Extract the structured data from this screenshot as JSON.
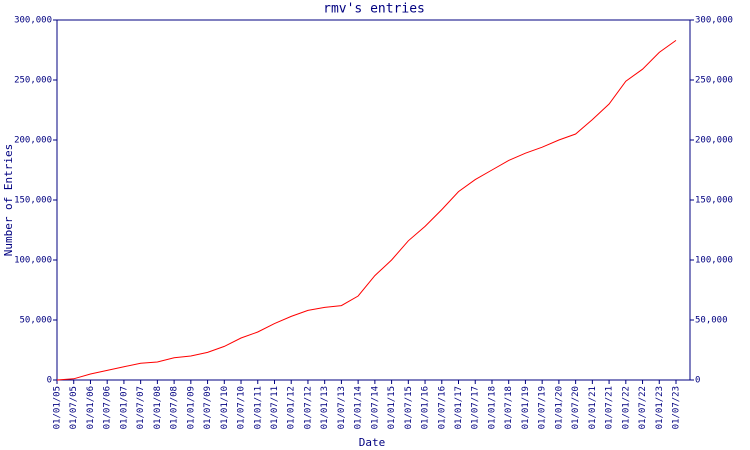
{
  "chart_data": {
    "type": "line",
    "title": "rmv's entries",
    "x_label": "Date",
    "y_label": "Number of Entries",
    "categories": [
      "01/01/05",
      "01/07/05",
      "01/01/06",
      "01/07/06",
      "01/01/07",
      "01/07/07",
      "01/01/08",
      "01/07/08",
      "01/01/09",
      "01/07/09",
      "01/01/10",
      "01/07/10",
      "01/01/11",
      "01/07/11",
      "01/01/12",
      "01/07/12",
      "01/01/13",
      "01/07/13",
      "01/01/14",
      "01/07/14",
      "01/01/15",
      "01/07/15",
      "01/01/16",
      "01/07/16",
      "01/01/17",
      "01/07/17",
      "01/01/18",
      "01/07/18",
      "01/01/19",
      "01/07/19",
      "01/01/20",
      "01/07/20",
      "01/01/21",
      "01/07/21",
      "01/01/22",
      "01/07/22",
      "01/01/23",
      "01/07/23"
    ],
    "series": [
      {
        "name": "entries",
        "color": "#ff0000",
        "values": [
          0,
          1000,
          5000,
          8000,
          11000,
          14000,
          15000,
          18500,
          20000,
          23000,
          28000,
          35000,
          40000,
          47000,
          53000,
          58000,
          60500,
          62000,
          70000,
          87000,
          100000,
          116000,
          128000,
          142000,
          157000,
          167000,
          175000,
          183000,
          189000,
          194000,
          200000,
          205000,
          217000,
          230000,
          249000,
          259000,
          273000,
          283000
        ]
      }
    ],
    "ylim": [
      0,
      300000
    ],
    "yticks": [
      0,
      {
        "value": 50000,
        "label": "50,000"
      },
      {
        "value": 100000,
        "label": "100,000"
      },
      {
        "value": 150000,
        "label": "150,000"
      },
      {
        "value": 200000,
        "label": "200,000"
      },
      {
        "value": 250000,
        "label": "250,000"
      },
      {
        "value": 300000,
        "label": "300,000"
      }
    ],
    "grid": false,
    "axis_color": "#000080"
  }
}
